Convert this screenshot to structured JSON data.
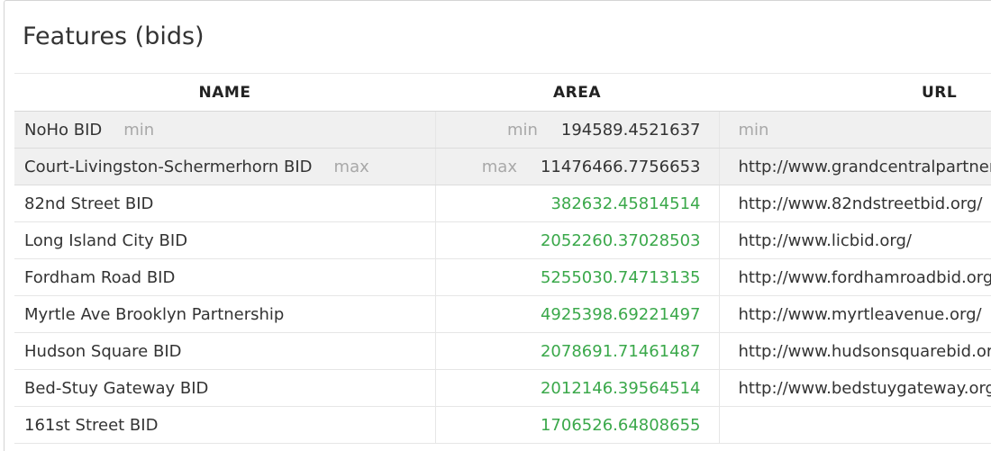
{
  "panel": {
    "title": "Features (bids)"
  },
  "columns": {
    "name": "NAME",
    "area": "AREA",
    "url": "URL"
  },
  "stats": {
    "min": {
      "label": "min",
      "name": "NoHo BID",
      "area": "194589.4521637",
      "url": ""
    },
    "max": {
      "label": "max",
      "name": "Court-Livingston-Schermerhorn BID",
      "area": "11476466.7756653",
      "url": "http://www.grandcentralpartnership.org/"
    }
  },
  "rows": [
    {
      "name": "82nd Street BID",
      "area": "382632.45814514",
      "url": "http://www.82ndstreetbid.org/"
    },
    {
      "name": "Long Island City BID",
      "area": "2052260.37028503",
      "url": "http://www.licbid.org/"
    },
    {
      "name": "Fordham Road BID",
      "area": "5255030.74713135",
      "url": "http://www.fordhamroadbid.org/"
    },
    {
      "name": "Myrtle Ave Brooklyn Partnership",
      "area": "4925398.69221497",
      "url": "http://www.myrtleavenue.org/"
    },
    {
      "name": "Hudson Square BID",
      "area": "2078691.71461487",
      "url": "http://www.hudsonsquarebid.org/"
    },
    {
      "name": "Bed-Stuy Gateway BID",
      "area": "2012146.39564514",
      "url": "http://www.bedstuygateway.org/"
    },
    {
      "name": "161st Street BID",
      "area": "1706526.64808655",
      "url": ""
    }
  ]
}
